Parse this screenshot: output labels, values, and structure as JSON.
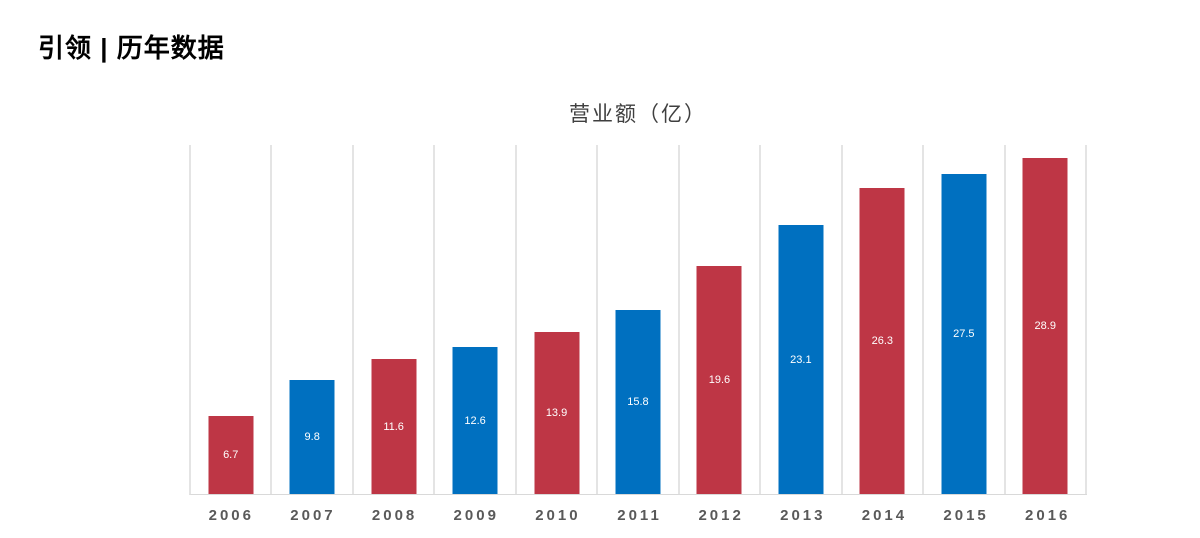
{
  "header": {
    "title": "引领 | 历年数据"
  },
  "chart_data": {
    "type": "bar",
    "title": "营业额（亿）",
    "categories": [
      "2006",
      "2007",
      "2008",
      "2009",
      "2010",
      "2011",
      "2012",
      "2013",
      "2014",
      "2015",
      "2016"
    ],
    "values": [
      6.7,
      9.8,
      11.6,
      12.6,
      13.9,
      15.8,
      19.6,
      23.1,
      26.3,
      27.5,
      28.9
    ],
    "point_colors": [
      "#be3645",
      "#0070c0",
      "#be3645",
      "#0070c0",
      "#be3645",
      "#0070c0",
      "#be3645",
      "#0070c0",
      "#be3645",
      "#0070c0",
      "#be3645"
    ],
    "xlabel": "",
    "ylabel": "",
    "ylim": [
      0,
      30
    ],
    "grid": "vertical-only",
    "legend": "none",
    "data_label_position": "inside-center"
  },
  "colors": {
    "bar_red": "#be3645",
    "bar_blue": "#0070c0",
    "gridline": "#e4e4e4",
    "axis_line": "#d9d9d9",
    "year_label": "#595959",
    "chart_title": "#3f3f3f",
    "data_label": "#ffffff",
    "header_text": "#000000",
    "background": "#ffffff"
  }
}
